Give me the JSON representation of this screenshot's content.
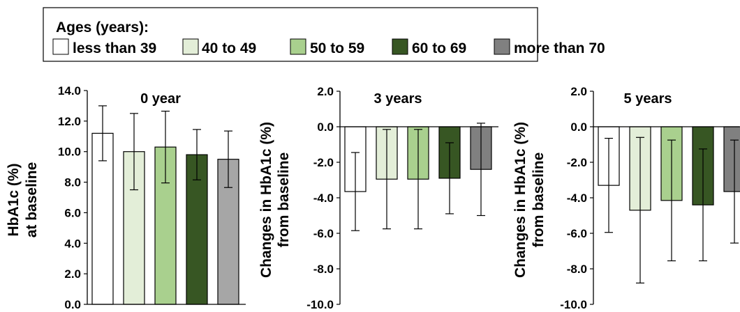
{
  "legend": {
    "title": "Ages (years):",
    "items": [
      {
        "label": "less than 39",
        "color": "#ffffff"
      },
      {
        "label": "40 to 49",
        "color": "#e3eed8"
      },
      {
        "label": "50 to 59",
        "color": "#a9d08e"
      },
      {
        "label": "60 to 69",
        "color": "#375623"
      },
      {
        "label": "more than 70",
        "color": "#808080"
      }
    ]
  },
  "chart_data": [
    {
      "type": "bar",
      "title": "0 year",
      "ylabel_lines": [
        "HbA1c (%)",
        "at baseline"
      ],
      "categories": [
        "less than 39",
        "40 to 49",
        "50 to 59",
        "60 to 69",
        "more than 70"
      ],
      "values": [
        11.2,
        10.0,
        10.3,
        9.8,
        9.5
      ],
      "error": [
        1.8,
        2.5,
        2.35,
        1.65,
        1.85
      ],
      "ylim": [
        0,
        14
      ],
      "yticks": [
        "0.0",
        "2.0",
        "4.0",
        "6.0",
        "8.0",
        "10.0",
        "12.0",
        "14.0"
      ],
      "colors": [
        "#ffffff",
        "#e3eed8",
        "#a9d08e",
        "#375623",
        "#a6a6a6"
      ]
    },
    {
      "type": "bar",
      "title": "3 years",
      "ylabel_lines": [
        "Changes in HbA1c (%)",
        "from baseline"
      ],
      "categories": [
        "less than 39",
        "40 to 49",
        "50 to 59",
        "60 to 69",
        "more than 70"
      ],
      "values": [
        -3.65,
        -2.95,
        -2.95,
        -2.9,
        -2.4
      ],
      "error": [
        2.2,
        2.8,
        2.8,
        2.0,
        2.6
      ],
      "ylim": [
        -10,
        2
      ],
      "yticks": [
        "-10.0",
        "-8.0",
        "-6.0",
        "-4.0",
        "-2.0",
        "0.0",
        "2.0"
      ],
      "colors": [
        "#ffffff",
        "#e3eed8",
        "#a9d08e",
        "#375623",
        "#808080"
      ]
    },
    {
      "type": "bar",
      "title": "5 years",
      "ylabel_lines": [
        "Changes in HbA1c (%)",
        "from baseline"
      ],
      "categories": [
        "less than 39",
        "40 to 49",
        "50 to 59",
        "60 to 69",
        "more than 70"
      ],
      "values": [
        -3.3,
        -4.7,
        -4.15,
        -4.4,
        -3.65
      ],
      "error": [
        2.65,
        4.1,
        3.4,
        3.15,
        2.9
      ],
      "ylim": [
        -10,
        2
      ],
      "yticks": [
        "-10.0",
        "-8.0",
        "-6.0",
        "-4.0",
        "-2.0",
        "0.0",
        "2.0"
      ],
      "colors": [
        "#ffffff",
        "#e3eed8",
        "#a9d08e",
        "#375623",
        "#808080"
      ]
    }
  ]
}
